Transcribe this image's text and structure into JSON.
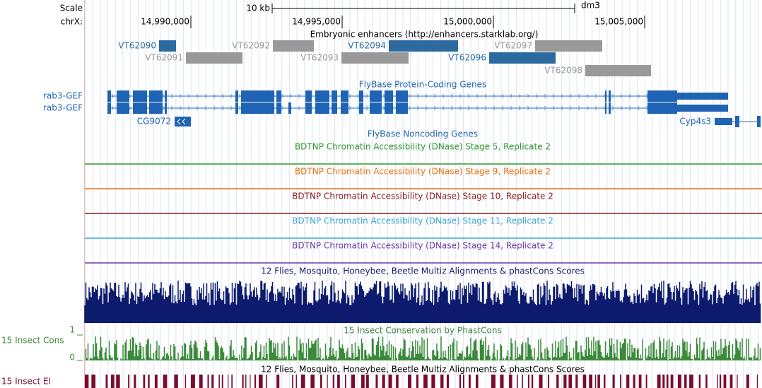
{
  "header": {
    "scale_label": "Scale",
    "chrom_label": "chrX:",
    "scale_bar": "10 kb",
    "assembly": "dm3",
    "positions": [
      "14,990,000",
      "14,995,000",
      "15,000,000",
      "15,005,000"
    ]
  },
  "tracks": {
    "enhancers": {
      "title": "Embryonic enhancers (http://enhancers.starklab.org/)",
      "items": [
        "VT62090",
        "VT62091",
        "VT62092",
        "VT62093",
        "VT62094",
        "VT62096",
        "VT62097",
        "VT62098"
      ]
    },
    "genes": {
      "title": "FlyBase Protein-Coding Genes",
      "items": [
        "rab3-GEF",
        "rab3-GEF",
        "CG9072",
        "Cyp4s3"
      ]
    },
    "noncoding": {
      "title": "FlyBase Noncoding Genes"
    },
    "dnase": [
      "BDTNP Chromatin Accessibility (DNase) Stage 5, Replicate 2",
      "BDTNP Chromatin Accessibility (DNase) Stage 9, Replicate 2",
      "BDTNP Chromatin Accessibility (DNase) Stage 10, Replicate 2",
      "BDTNP Chromatin Accessibility (DNase) Stage 11, Replicate 2",
      "BDTNP Chromatin Accessibility (DNase) Stage 14, Replicate 2"
    ],
    "multiz": {
      "title": "12 Flies, Mosquito, Honeybee, Beetle Multiz Alignments & phastCons Scores",
      "cons_title": "15 Insect Conservation by PhastCons",
      "cons_label": "15 Insect Cons",
      "cons_max": "1",
      "cons_min": "0",
      "elements_title": "12 Flies, Mosquito, Honeybee, Beetle Multiz Alignments & phastCons Scores",
      "elements_label": "15 Insect El"
    }
  }
}
